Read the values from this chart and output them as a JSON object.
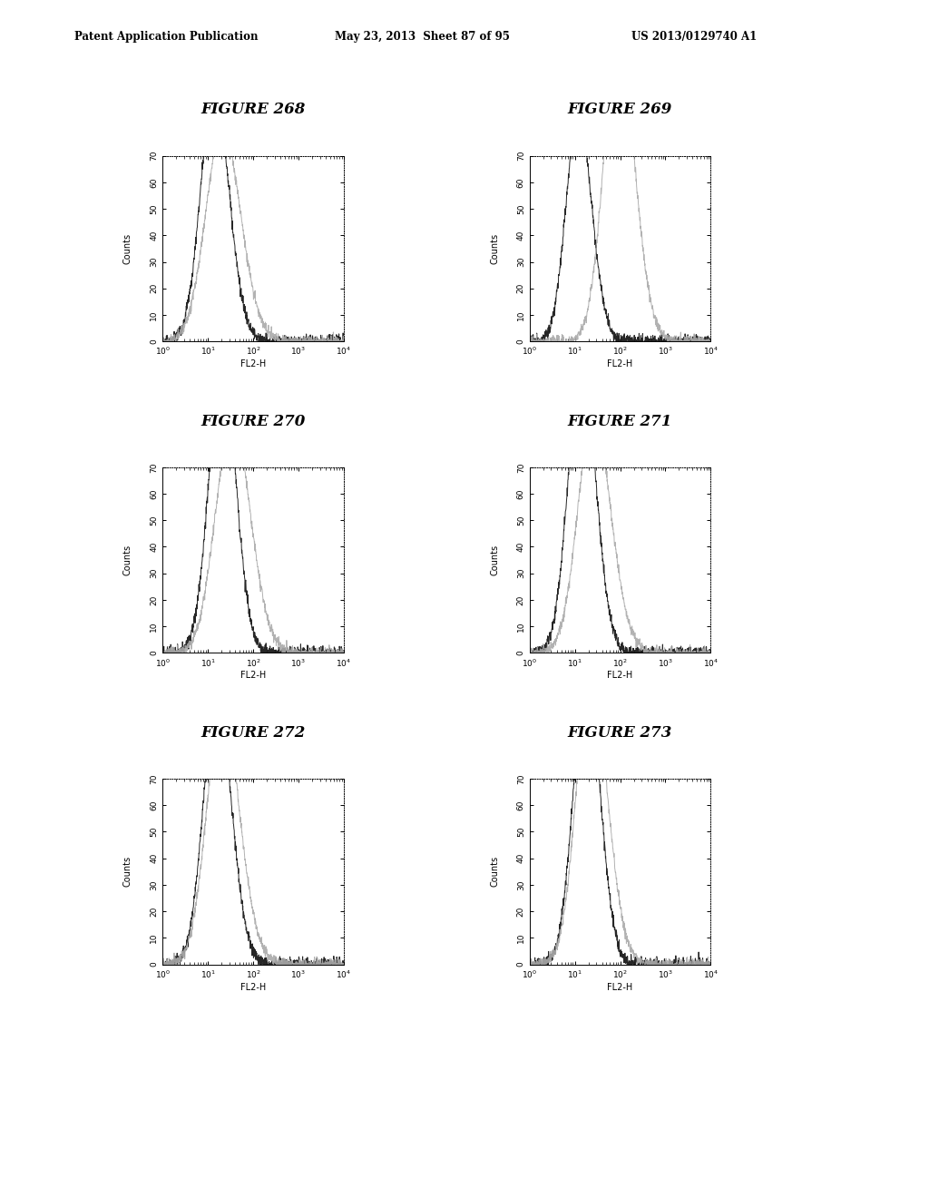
{
  "header_left": "Patent Application Publication",
  "header_mid": "May 23, 2013  Sheet 87 of 95",
  "header_right": "US 2013/0129740 A1",
  "figures": [
    {
      "title": "FIGURE 268",
      "num": 268
    },
    {
      "title": "FIGURE 269",
      "num": 269
    },
    {
      "title": "FIGURE 270",
      "num": 270
    },
    {
      "title": "FIGURE 271",
      "num": 271
    },
    {
      "title": "FIGURE 272",
      "num": 272
    },
    {
      "title": "FIGURE 273",
      "num": 273
    }
  ],
  "xlabel": "FL2-H",
  "ylabel": "Counts",
  "xmin": 1,
  "xmax": 10000,
  "ymin": 0,
  "ymax": 70,
  "yticks": [
    0,
    10,
    20,
    30,
    40,
    50,
    60,
    70
  ],
  "background_color": "#ffffff",
  "curve_dark": "#1a1a1a",
  "curve_gray": "#aaaaaa",
  "panel_facecolor": "#ffffff",
  "curves": {
    "268": {
      "dark": {
        "mus": [
          12,
          18
        ],
        "sigs": [
          0.28,
          0.32
        ],
        "amps": [
          55,
          45
        ]
      },
      "gray": {
        "mus": [
          18,
          28
        ],
        "sigs": [
          0.35,
          0.4
        ],
        "amps": [
          45,
          38
        ]
      }
    },
    "269": {
      "dark": {
        "mus": [
          10,
          16
        ],
        "sigs": [
          0.25,
          0.28
        ],
        "amps": [
          50,
          42
        ]
      },
      "gray": {
        "mus": [
          80,
          120
        ],
        "sigs": [
          0.3,
          0.35
        ],
        "amps": [
          65,
          55
        ]
      }
    },
    "270": {
      "dark": {
        "mus": [
          18,
          25
        ],
        "sigs": [
          0.28,
          0.3
        ],
        "amps": [
          60,
          52
        ]
      },
      "gray": {
        "mus": [
          30,
          45
        ],
        "sigs": [
          0.35,
          0.4
        ],
        "amps": [
          48,
          42
        ]
      }
    },
    "271": {
      "dark": {
        "mus": [
          12,
          18
        ],
        "sigs": [
          0.28,
          0.3
        ],
        "amps": [
          62,
          52
        ]
      },
      "gray": {
        "mus": [
          22,
          35
        ],
        "sigs": [
          0.32,
          0.38
        ],
        "amps": [
          50,
          44
        ]
      }
    },
    "272": {
      "dark": {
        "mus": [
          14,
          20
        ],
        "sigs": [
          0.28,
          0.32
        ],
        "amps": [
          58,
          48
        ]
      },
      "gray": {
        "mus": [
          18,
          28
        ],
        "sigs": [
          0.32,
          0.38
        ],
        "amps": [
          55,
          46
        ]
      }
    },
    "273": {
      "dark": {
        "mus": [
          16,
          22
        ],
        "sigs": [
          0.28,
          0.3
        ],
        "amps": [
          60,
          50
        ]
      },
      "gray": {
        "mus": [
          20,
          30
        ],
        "sigs": [
          0.3,
          0.36
        ],
        "amps": [
          62,
          52
        ]
      }
    }
  }
}
